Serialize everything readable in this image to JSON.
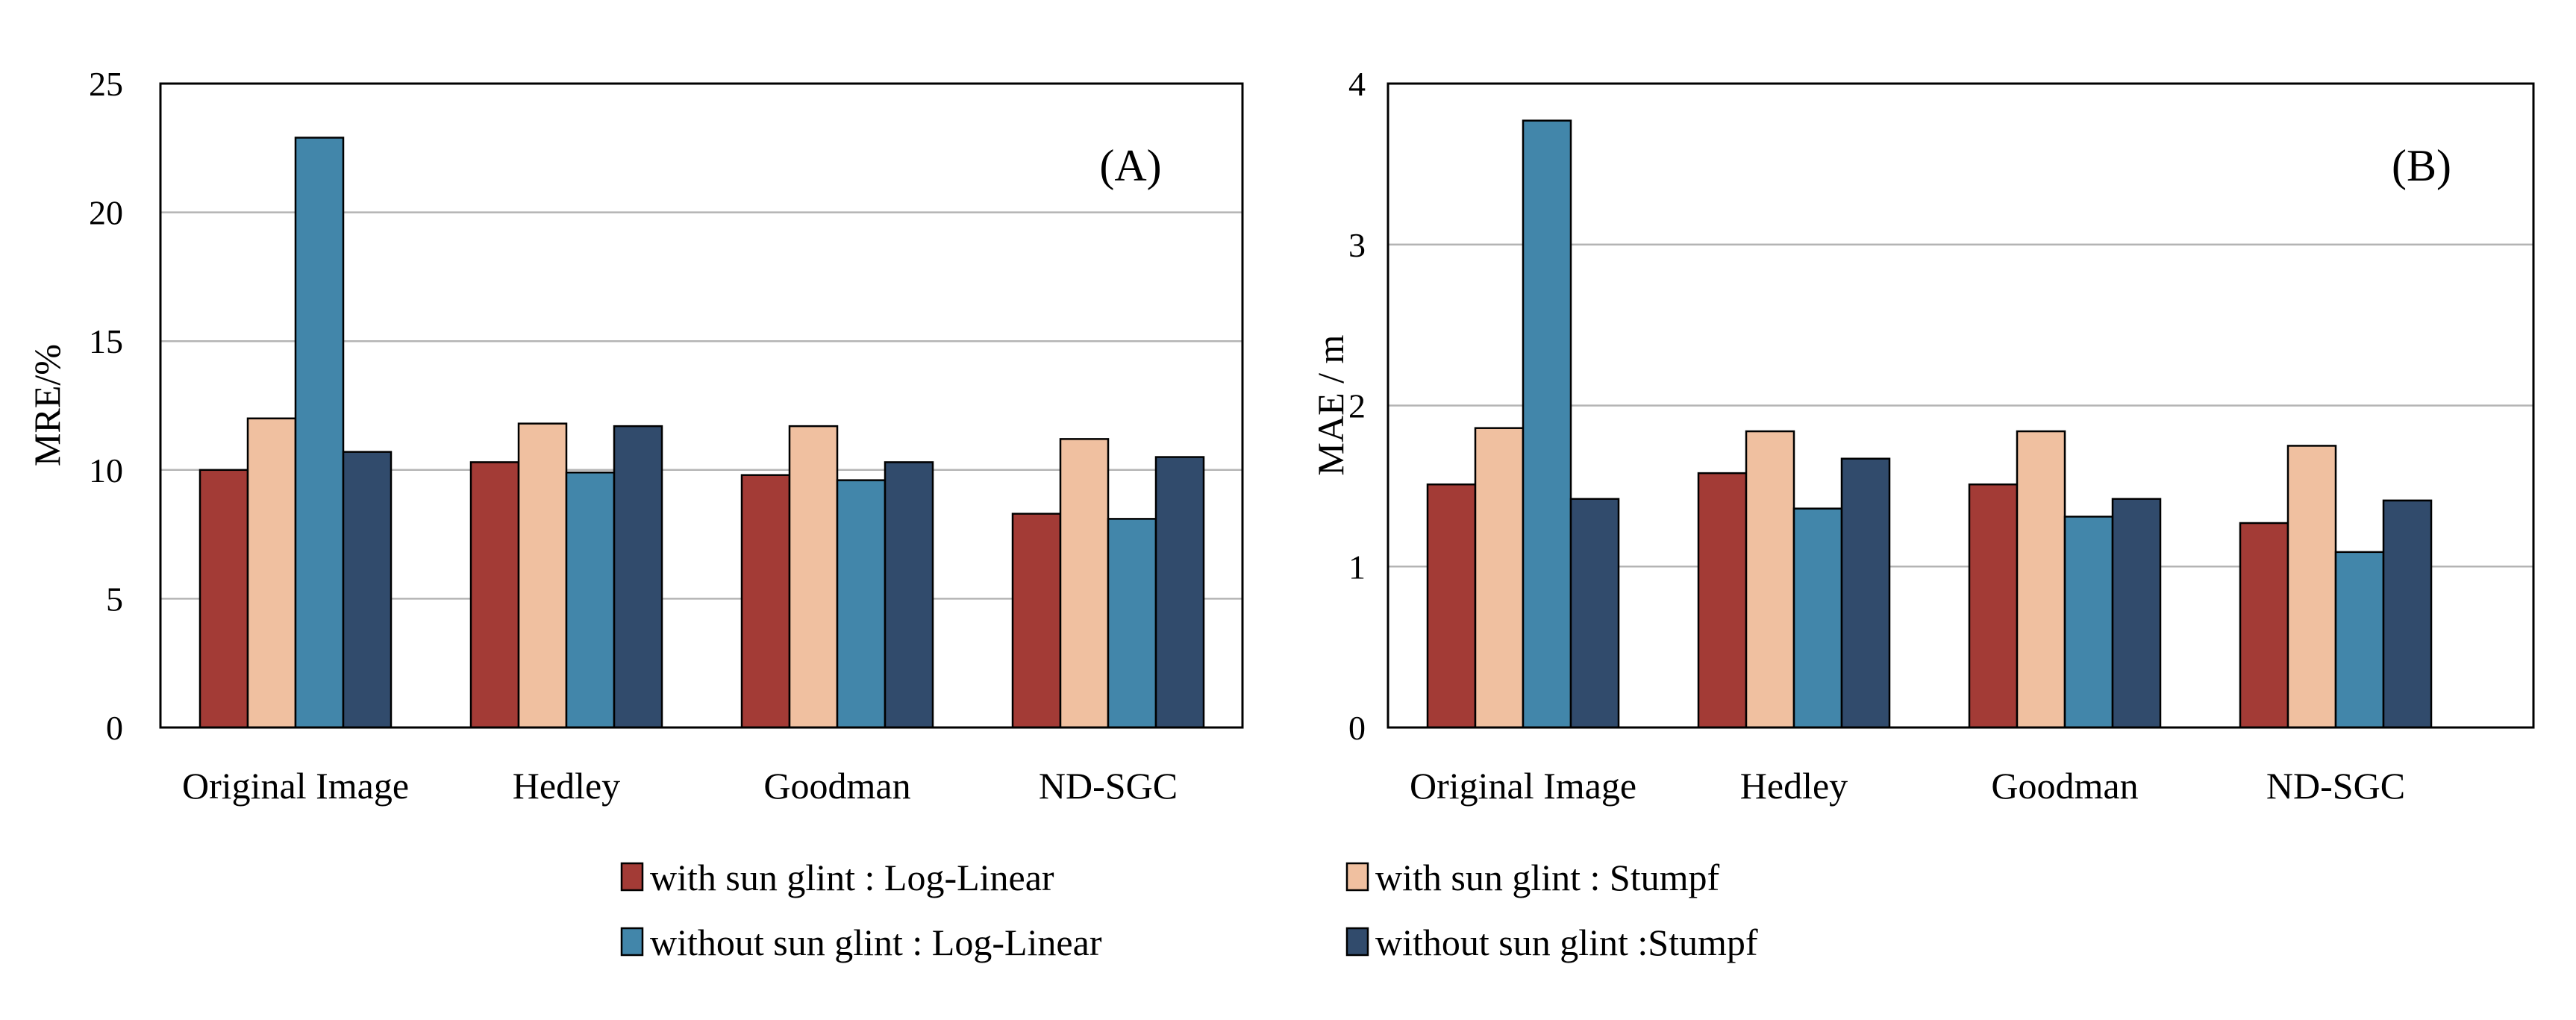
{
  "colors": {
    "with_loglinear": "#A33B36",
    "with_stumpf": "#F0C0A0",
    "without_loglinear": "#4286AA",
    "without_stumpf": "#314B6C",
    "gridline": "#b4b4b4",
    "axis": "#000000"
  },
  "legend": {
    "items": [
      {
        "label": "with sun glint : Log-Linear",
        "color_key": "with_loglinear"
      },
      {
        "label": "with sun glint : Stumpf",
        "color_key": "with_stumpf"
      },
      {
        "label": "without sun glint : Log-Linear",
        "color_key": "without_loglinear"
      },
      {
        "label": "without sun glint :Stumpf",
        "color_key": "without_stumpf"
      }
    ]
  },
  "chart_data": [
    {
      "type": "bar",
      "panel_label": "(A)",
      "ylabel": "MRE/%",
      "xlabel": "",
      "ylim": [
        0,
        25
      ],
      "yticks": [
        0,
        5,
        10,
        15,
        20,
        25
      ],
      "grid": true,
      "categories": [
        "Original Image",
        "Hedley",
        "Goodman",
        "ND-SGC"
      ],
      "series": [
        {
          "name": "with sun glint : Log-Linear",
          "color_key": "with_loglinear",
          "values": [
            10.0,
            10.3,
            9.8,
            8.3
          ]
        },
        {
          "name": "with sun glint : Stumpf",
          "color_key": "with_stumpf",
          "values": [
            12.0,
            11.8,
            11.7,
            11.2
          ]
        },
        {
          "name": "without sun glint : Log-Linear",
          "color_key": "without_loglinear",
          "values": [
            22.9,
            9.9,
            9.6,
            8.1
          ]
        },
        {
          "name": "without sun glint :Stumpf",
          "color_key": "without_stumpf",
          "values": [
            10.7,
            11.7,
            10.3,
            10.5
          ]
        }
      ]
    },
    {
      "type": "bar",
      "panel_label": "(B)",
      "ylabel": "MAE / m",
      "xlabel": "",
      "ylim": [
        0,
        4
      ],
      "yticks": [
        0,
        1,
        2,
        3,
        4
      ],
      "grid": true,
      "categories": [
        "Original Image",
        "Hedley",
        "Goodman",
        "ND-SGC"
      ],
      "series": [
        {
          "name": "with sun glint : Log-Linear",
          "color_key": "with_loglinear",
          "values": [
            1.51,
            1.58,
            1.51,
            1.27
          ]
        },
        {
          "name": "with sun glint : Stumpf",
          "color_key": "with_stumpf",
          "values": [
            1.86,
            1.84,
            1.84,
            1.75
          ]
        },
        {
          "name": "without sun glint : Log-Linear",
          "color_key": "without_loglinear",
          "values": [
            3.77,
            1.36,
            1.31,
            1.09
          ]
        },
        {
          "name": "without sun glint :Stumpf",
          "color_key": "without_stumpf",
          "values": [
            1.42,
            1.67,
            1.42,
            1.41
          ]
        }
      ]
    }
  ]
}
